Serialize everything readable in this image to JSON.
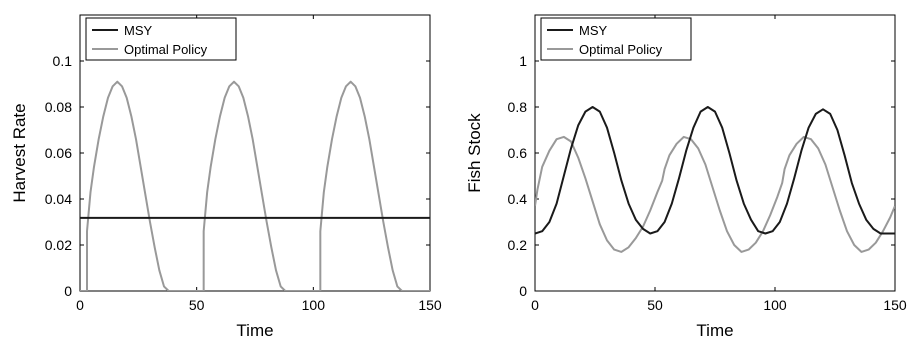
{
  "chart_data": [
    {
      "type": "line",
      "xlabel": "Time",
      "ylabel": "Harvest Rate",
      "xlim": [
        0,
        150
      ],
      "ylim": [
        0,
        0.12
      ],
      "xticks": [
        "0",
        "50",
        "100",
        "150"
      ],
      "yticks": [
        "0",
        "0.02",
        "0.04",
        "0.06",
        "0.08",
        "0.1"
      ],
      "legend_position": "top-left",
      "grid": false,
      "series": [
        {
          "name": "MSY",
          "color": "#1a1a1a",
          "x": [
            0,
            150
          ],
          "y": [
            0.0318,
            0.0318
          ]
        },
        {
          "name": "Optimal Policy",
          "color": "#999999",
          "x": [
            0,
            3,
            3,
            4.5,
            6,
            8,
            10,
            12,
            14,
            16,
            18,
            20,
            22,
            24,
            26,
            28,
            30,
            32,
            34,
            36,
            38,
            40,
            53,
            53,
            54.5,
            56,
            58,
            60,
            62,
            64,
            66,
            68,
            70,
            72,
            74,
            76,
            78,
            80,
            82,
            84,
            86,
            88,
            90,
            103,
            103,
            104.5,
            106,
            108,
            110,
            112,
            114,
            116,
            118,
            120,
            122,
            124,
            126,
            128,
            130,
            132,
            134,
            136,
            138,
            140,
            150
          ],
          "y": [
            0,
            0,
            0.026,
            0.043,
            0.054,
            0.066,
            0.076,
            0.084,
            0.089,
            0.091,
            0.089,
            0.084,
            0.076,
            0.066,
            0.054,
            0.042,
            0.03,
            0.019,
            0.009,
            0.002,
            0,
            0,
            0,
            0.026,
            0.043,
            0.054,
            0.066,
            0.076,
            0.084,
            0.089,
            0.091,
            0.089,
            0.084,
            0.076,
            0.066,
            0.054,
            0.042,
            0.03,
            0.019,
            0.009,
            0.002,
            0,
            0,
            0,
            0.026,
            0.043,
            0.054,
            0.066,
            0.076,
            0.084,
            0.089,
            0.091,
            0.089,
            0.084,
            0.076,
            0.066,
            0.054,
            0.042,
            0.03,
            0.019,
            0.009,
            0.002,
            0,
            0,
            0
          ]
        }
      ]
    },
    {
      "type": "line",
      "xlabel": "Time",
      "ylabel": "Fish Stock",
      "xlim": [
        0,
        150
      ],
      "ylim": [
        0,
        1.2
      ],
      "xticks": [
        "0",
        "50",
        "100",
        "150"
      ],
      "yticks": [
        "0",
        "0.2",
        "0.4",
        "0.6",
        "0.8",
        "1"
      ],
      "legend_position": "top-left",
      "grid": false,
      "series": [
        {
          "name": "MSY",
          "color": "#1a1a1a",
          "x": [
            0,
            3,
            6,
            9,
            12,
            15,
            18,
            21,
            24,
            27,
            30,
            33,
            36,
            39,
            42,
            45,
            48,
            51,
            54,
            57,
            60,
            63,
            66,
            69,
            72,
            75,
            78,
            81,
            84,
            87,
            90,
            93,
            96,
            99,
            102,
            105,
            108,
            111,
            114,
            117,
            120,
            123,
            126,
            129,
            132,
            135,
            138,
            141,
            144,
            147,
            150
          ],
          "y": [
            0.25,
            0.26,
            0.3,
            0.38,
            0.5,
            0.62,
            0.72,
            0.78,
            0.8,
            0.78,
            0.71,
            0.6,
            0.48,
            0.38,
            0.31,
            0.27,
            0.25,
            0.26,
            0.3,
            0.38,
            0.49,
            0.61,
            0.71,
            0.78,
            0.8,
            0.78,
            0.71,
            0.6,
            0.48,
            0.38,
            0.31,
            0.26,
            0.25,
            0.26,
            0.3,
            0.38,
            0.49,
            0.61,
            0.71,
            0.77,
            0.79,
            0.77,
            0.7,
            0.59,
            0.47,
            0.38,
            0.31,
            0.27,
            0.25,
            0.25,
            0.25
          ]
        },
        {
          "name": "Optimal Policy",
          "color": "#999999",
          "x": [
            0,
            1,
            3,
            6,
            9,
            12,
            15,
            18,
            21,
            24,
            27,
            30,
            33,
            36,
            39,
            42,
            45,
            48,
            51,
            53,
            54,
            56,
            59,
            62,
            65,
            68,
            71,
            74,
            77,
            80,
            83,
            86,
            89,
            92,
            95,
            98,
            101,
            103,
            104,
            106,
            109,
            112,
            115,
            118,
            121,
            124,
            127,
            130,
            133,
            136,
            139,
            142,
            145,
            148,
            150
          ],
          "y": [
            0.37,
            0.44,
            0.54,
            0.61,
            0.66,
            0.67,
            0.65,
            0.58,
            0.49,
            0.39,
            0.29,
            0.22,
            0.18,
            0.17,
            0.19,
            0.23,
            0.28,
            0.35,
            0.43,
            0.48,
            0.53,
            0.59,
            0.64,
            0.67,
            0.66,
            0.62,
            0.55,
            0.45,
            0.35,
            0.26,
            0.2,
            0.17,
            0.18,
            0.21,
            0.26,
            0.33,
            0.41,
            0.47,
            0.53,
            0.59,
            0.64,
            0.67,
            0.66,
            0.62,
            0.55,
            0.45,
            0.35,
            0.26,
            0.2,
            0.17,
            0.18,
            0.21,
            0.26,
            0.32,
            0.37
          ]
        }
      ]
    }
  ]
}
